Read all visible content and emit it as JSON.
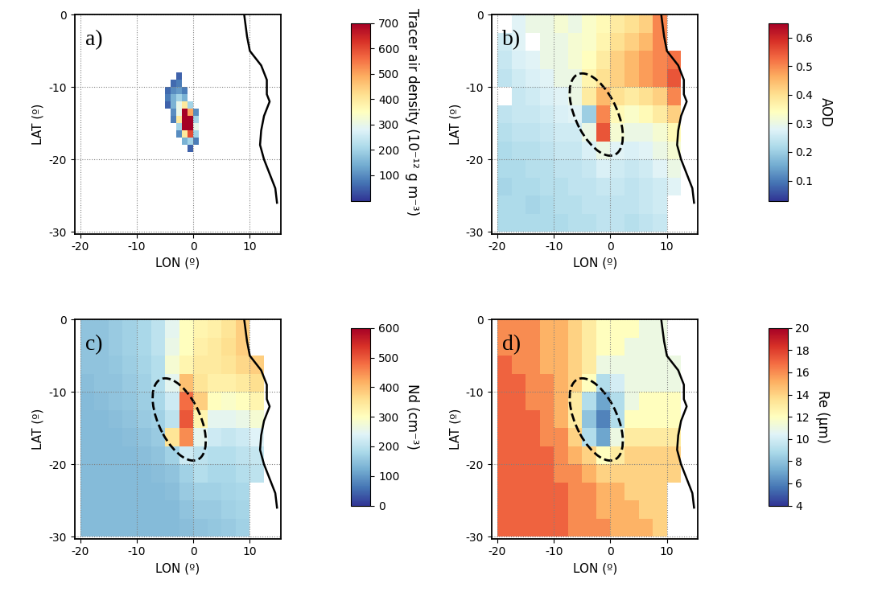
{
  "chart_data": [
    {
      "type": "heatmap",
      "label": "a)",
      "xlabel": "LON (º)",
      "ylabel": "LAT (º)",
      "xlim": [
        -21,
        15.5
      ],
      "ylim": [
        -30.3,
        0
      ],
      "xticks": [
        -20,
        -10,
        0,
        10
      ],
      "yticks": [
        -30,
        -20,
        -10,
        0
      ],
      "grid": true,
      "lon_edges": [
        -6,
        -5,
        -4,
        -3,
        -2,
        -1,
        0,
        1
      ],
      "lat_edges": [
        -8,
        -9,
        -10,
        -11,
        -12,
        -13,
        -14,
        -15,
        -16,
        -17,
        -18,
        -19
      ],
      "cells": [
        [
          null,
          null,
          null,
          50,
          null,
          null,
          null
        ],
        [
          null,
          null,
          60,
          80,
          null,
          null,
          null
        ],
        [
          null,
          60,
          100,
          120,
          80,
          null,
          null
        ],
        [
          null,
          80,
          150,
          200,
          150,
          null,
          null
        ],
        [
          null,
          50,
          150,
          300,
          400,
          200,
          null
        ],
        [
          null,
          null,
          100,
          300,
          700,
          500,
          100
        ],
        [
          null,
          null,
          80,
          400,
          700,
          700,
          200
        ],
        [
          null,
          null,
          null,
          200,
          700,
          700,
          300
        ],
        [
          null,
          null,
          null,
          100,
          400,
          600,
          200
        ],
        [
          null,
          null,
          null,
          null,
          150,
          200,
          80
        ],
        [
          null,
          null,
          null,
          null,
          null,
          50,
          null
        ]
      ],
      "colorbar": {
        "label": "Tracer air density (10⁻¹² g m⁻³)",
        "range": [
          0,
          700
        ],
        "ticks": [
          100,
          200,
          300,
          400,
          500,
          600,
          700
        ]
      },
      "coastline": {
        "lon": [
          9,
          9.5,
          10,
          11,
          12,
          13,
          13,
          13.5,
          12.5,
          12,
          11.8,
          12.5,
          13.5,
          14.5,
          14.8
        ],
        "lat": [
          0,
          -3,
          -5,
          -6,
          -7,
          -9,
          -11,
          -12,
          -14,
          -16,
          -18,
          -20,
          -22,
          -24,
          -26
        ]
      }
    },
    {
      "type": "heatmap",
      "label": "b)",
      "xlabel": "LON (º)",
      "ylabel": "LAT (º)",
      "xlim": [
        -21,
        15.5
      ],
      "ylim": [
        -30.3,
        0
      ],
      "xticks": [
        -20,
        -10,
        0,
        10
      ],
      "yticks": [
        -30,
        -20,
        -10,
        0
      ],
      "grid": true,
      "lon_edges": [
        -20,
        -17.5,
        -15,
        -12.5,
        -10,
        -7.5,
        -5,
        -2.5,
        0,
        2.5,
        5,
        7.5,
        10,
        12.5,
        15
      ],
      "lat_edges": [
        0,
        -2.5,
        -5,
        -7.5,
        -10,
        -12.5,
        -15,
        -17.5,
        -20,
        -22.5,
        -25,
        -27.5,
        -30
      ],
      "cells": [
        [
          null,
          0.28,
          0.3,
          0.3,
          0.32,
          0.3,
          0.33,
          0.35,
          0.38,
          0.4,
          0.42,
          0.5,
          null,
          null
        ],
        [
          0.26,
          0.28,
          null,
          0.3,
          0.3,
          0.32,
          0.33,
          0.36,
          0.4,
          0.42,
          0.45,
          0.5,
          null,
          null
        ],
        [
          0.25,
          0.27,
          0.28,
          0.3,
          0.3,
          0.32,
          0.34,
          0.38,
          0.42,
          0.45,
          0.48,
          0.5,
          0.52,
          null
        ],
        [
          0.24,
          0.26,
          0.27,
          0.28,
          0.3,
          0.3,
          0.36,
          0.4,
          0.42,
          0.45,
          0.48,
          0.5,
          0.55,
          null
        ],
        [
          null,
          0.25,
          0.26,
          0.27,
          0.28,
          0.3,
          0.38,
          0.45,
          0.4,
          0.38,
          0.4,
          0.42,
          0.5,
          null
        ],
        [
          0.24,
          0.25,
          0.25,
          0.26,
          0.27,
          0.28,
          0.2,
          0.5,
          0.35,
          0.33,
          0.35,
          0.38,
          0.42,
          null
        ],
        [
          0.23,
          0.24,
          0.24,
          0.25,
          0.26,
          0.26,
          0.3,
          0.55,
          0.32,
          0.3,
          0.3,
          0.32,
          0.35,
          null
        ],
        [
          0.22,
          0.23,
          0.23,
          0.24,
          0.25,
          0.25,
          0.27,
          0.3,
          0.28,
          0.27,
          0.28,
          0.3,
          0.32,
          null
        ],
        [
          0.22,
          0.22,
          0.23,
          0.23,
          0.24,
          0.24,
          0.25,
          0.27,
          0.26,
          0.25,
          0.26,
          0.28,
          0.3,
          null
        ],
        [
          0.21,
          0.22,
          0.22,
          0.23,
          0.23,
          0.24,
          0.24,
          0.25,
          0.25,
          0.24,
          0.25,
          0.26,
          0.28,
          null
        ],
        [
          0.22,
          0.22,
          0.21,
          0.22,
          0.23,
          0.23,
          0.24,
          0.24,
          0.24,
          0.24,
          0.25,
          0.26,
          null,
          null
        ],
        [
          0.22,
          0.22,
          0.22,
          0.22,
          0.22,
          0.23,
          0.23,
          0.24,
          0.24,
          0.23,
          0.24,
          0.25,
          null,
          null
        ]
      ],
      "colorbar": {
        "label": "AOD",
        "range": [
          0.03,
          0.65
        ],
        "ticks": [
          0.1,
          0.2,
          0.3,
          0.4,
          0.5,
          0.6
        ]
      },
      "ellipse": {
        "center": [
          -2.5,
          -13.8
        ],
        "width": 13,
        "height": 7,
        "angle": -55
      },
      "coastline": {
        "lon": [
          9,
          9.5,
          10,
          11,
          12,
          13,
          13,
          13.5,
          12.5,
          12,
          11.8,
          12.5,
          13.5,
          14.5,
          14.8
        ],
        "lat": [
          0,
          -3,
          -5,
          -6,
          -7,
          -9,
          -11,
          -12,
          -14,
          -16,
          -18,
          -20,
          -22,
          -24,
          -26
        ]
      }
    },
    {
      "type": "heatmap",
      "label": "c)",
      "xlabel": "LON (º)",
      "ylabel": "LAT (º)",
      "xlim": [
        -21,
        15.5
      ],
      "ylim": [
        -30.3,
        0
      ],
      "xticks": [
        -20,
        -10,
        0,
        10
      ],
      "yticks": [
        -30,
        -20,
        -10,
        0
      ],
      "grid": true,
      "lon_edges": [
        -20,
        -17.5,
        -15,
        -12.5,
        -10,
        -7.5,
        -5,
        -2.5,
        0,
        2.5,
        5,
        7.5,
        10,
        12.5,
        15
      ],
      "lat_edges": [
        0,
        -2.5,
        -5,
        -7.5,
        -10,
        -12.5,
        -15,
        -17.5,
        -20,
        -22.5,
        -25,
        -27.5,
        -30
      ],
      "cells": [
        [
          150,
          150,
          160,
          170,
          180,
          200,
          250,
          300,
          320,
          330,
          350,
          380,
          null,
          null
        ],
        [
          150,
          150,
          160,
          170,
          180,
          200,
          260,
          300,
          330,
          340,
          360,
          380,
          null,
          null
        ],
        [
          150,
          150,
          155,
          165,
          175,
          190,
          280,
          320,
          340,
          340,
          350,
          370,
          380,
          null
        ],
        [
          145,
          150,
          150,
          160,
          170,
          190,
          250,
          400,
          350,
          330,
          330,
          340,
          360,
          null
        ],
        [
          140,
          145,
          150,
          155,
          165,
          180,
          220,
          480,
          380,
          300,
          290,
          300,
          320,
          null
        ],
        [
          140,
          140,
          145,
          150,
          160,
          170,
          200,
          500,
          320,
          250,
          250,
          260,
          280,
          null
        ],
        [
          140,
          140,
          140,
          145,
          150,
          160,
          350,
          450,
          250,
          220,
          210,
          220,
          240,
          null
        ],
        [
          140,
          140,
          140,
          140,
          145,
          150,
          170,
          220,
          200,
          190,
          190,
          200,
          210,
          null
        ],
        [
          140,
          140,
          140,
          140,
          140,
          145,
          150,
          170,
          190,
          180,
          180,
          190,
          200,
          null
        ],
        [
          140,
          140,
          140,
          140,
          140,
          140,
          145,
          160,
          170,
          170,
          175,
          180,
          null,
          null
        ],
        [
          140,
          140,
          140,
          140,
          140,
          140,
          140,
          150,
          160,
          160,
          170,
          175,
          null,
          null
        ],
        [
          140,
          140,
          140,
          140,
          140,
          140,
          140,
          145,
          150,
          155,
          160,
          170,
          null,
          null
        ]
      ],
      "colorbar": {
        "label": "Nd (cm⁻³)",
        "range": [
          0,
          600
        ],
        "ticks": [
          0,
          100,
          200,
          300,
          400,
          500,
          600
        ]
      },
      "ellipse": {
        "center": [
          -2.5,
          -13.8
        ],
        "width": 13,
        "height": 7,
        "angle": -55
      },
      "coastline": {
        "lon": [
          9,
          9.5,
          10,
          11,
          12,
          13,
          13,
          13.5,
          12.5,
          12,
          11.8,
          12.5,
          13.5,
          14.5,
          14.8
        ],
        "lat": [
          0,
          -3,
          -5,
          -6,
          -7,
          -9,
          -11,
          -12,
          -14,
          -16,
          -18,
          -20,
          -22,
          -24,
          -26
        ]
      }
    },
    {
      "type": "heatmap",
      "label": "d)",
      "xlabel": "LON (º)",
      "ylabel": "LAT (º)",
      "xlim": [
        -21,
        15.5
      ],
      "ylim": [
        -30.3,
        0
      ],
      "xticks": [
        -20,
        -10,
        0,
        10
      ],
      "yticks": [
        -30,
        -20,
        -10,
        0
      ],
      "grid": true,
      "lon_edges": [
        -20,
        -17.5,
        -15,
        -12.5,
        -10,
        -7.5,
        -5,
        -2.5,
        0,
        2.5,
        5,
        7.5,
        10,
        12.5,
        15
      ],
      "lat_edges": [
        0,
        -2.5,
        -5,
        -7.5,
        -10,
        -12.5,
        -15,
        -17.5,
        -20,
        -22.5,
        -25,
        -27.5,
        -30
      ],
      "cells": [
        [
          16,
          16,
          16,
          15,
          15,
          14,
          13,
          12,
          12,
          12,
          11,
          11,
          null,
          null
        ],
        [
          16,
          16,
          16,
          15,
          15,
          14,
          13,
          12,
          12,
          11,
          11,
          11,
          null,
          null
        ],
        [
          17,
          16,
          16,
          15,
          15,
          14,
          13,
          11,
          11,
          11,
          11,
          11,
          11,
          null
        ],
        [
          17,
          17,
          16,
          16,
          15,
          14,
          12,
          9,
          10,
          11,
          11,
          11,
          11,
          null
        ],
        [
          17,
          17,
          16,
          16,
          15,
          13,
          9,
          7,
          9,
          11,
          12,
          12,
          12,
          null
        ],
        [
          17,
          17,
          17,
          16,
          15,
          13,
          8,
          6,
          9,
          12,
          12,
          12,
          12,
          null
        ],
        [
          17,
          17,
          17,
          16,
          16,
          14,
          9,
          7,
          11,
          13,
          13,
          13,
          13,
          null
        ],
        [
          17,
          17,
          17,
          17,
          16,
          15,
          14,
          12,
          13,
          14,
          14,
          14,
          14,
          null
        ],
        [
          17,
          17,
          17,
          17,
          16,
          16,
          15,
          14,
          14,
          14,
          14,
          14,
          14,
          null
        ],
        [
          17,
          17,
          17,
          17,
          17,
          16,
          16,
          15,
          15,
          14,
          14,
          14,
          null,
          null
        ],
        [
          17,
          17,
          17,
          17,
          17,
          16,
          16,
          15,
          15,
          15,
          14,
          14,
          null,
          null
        ],
        [
          17,
          17,
          17,
          17,
          17,
          16,
          16,
          16,
          15,
          15,
          15,
          14,
          null,
          null
        ]
      ],
      "colorbar": {
        "label": "Re (µm)",
        "range": [
          4,
          20
        ],
        "ticks": [
          4,
          6,
          8,
          10,
          12,
          14,
          16,
          18,
          20
        ]
      },
      "ellipse": {
        "center": [
          -2.5,
          -13.8
        ],
        "width": 13,
        "height": 7,
        "angle": -55
      },
      "coastline": {
        "lon": [
          9,
          9.5,
          10,
          11,
          12,
          13,
          13,
          13.5,
          12.5,
          12,
          11.8,
          12.5,
          13.5,
          14.5,
          14.8
        ],
        "lat": [
          0,
          -3,
          -5,
          -6,
          -7,
          -9,
          -11,
          -12,
          -14,
          -16,
          -18,
          -20,
          -22,
          -24,
          -26
        ]
      }
    }
  ]
}
